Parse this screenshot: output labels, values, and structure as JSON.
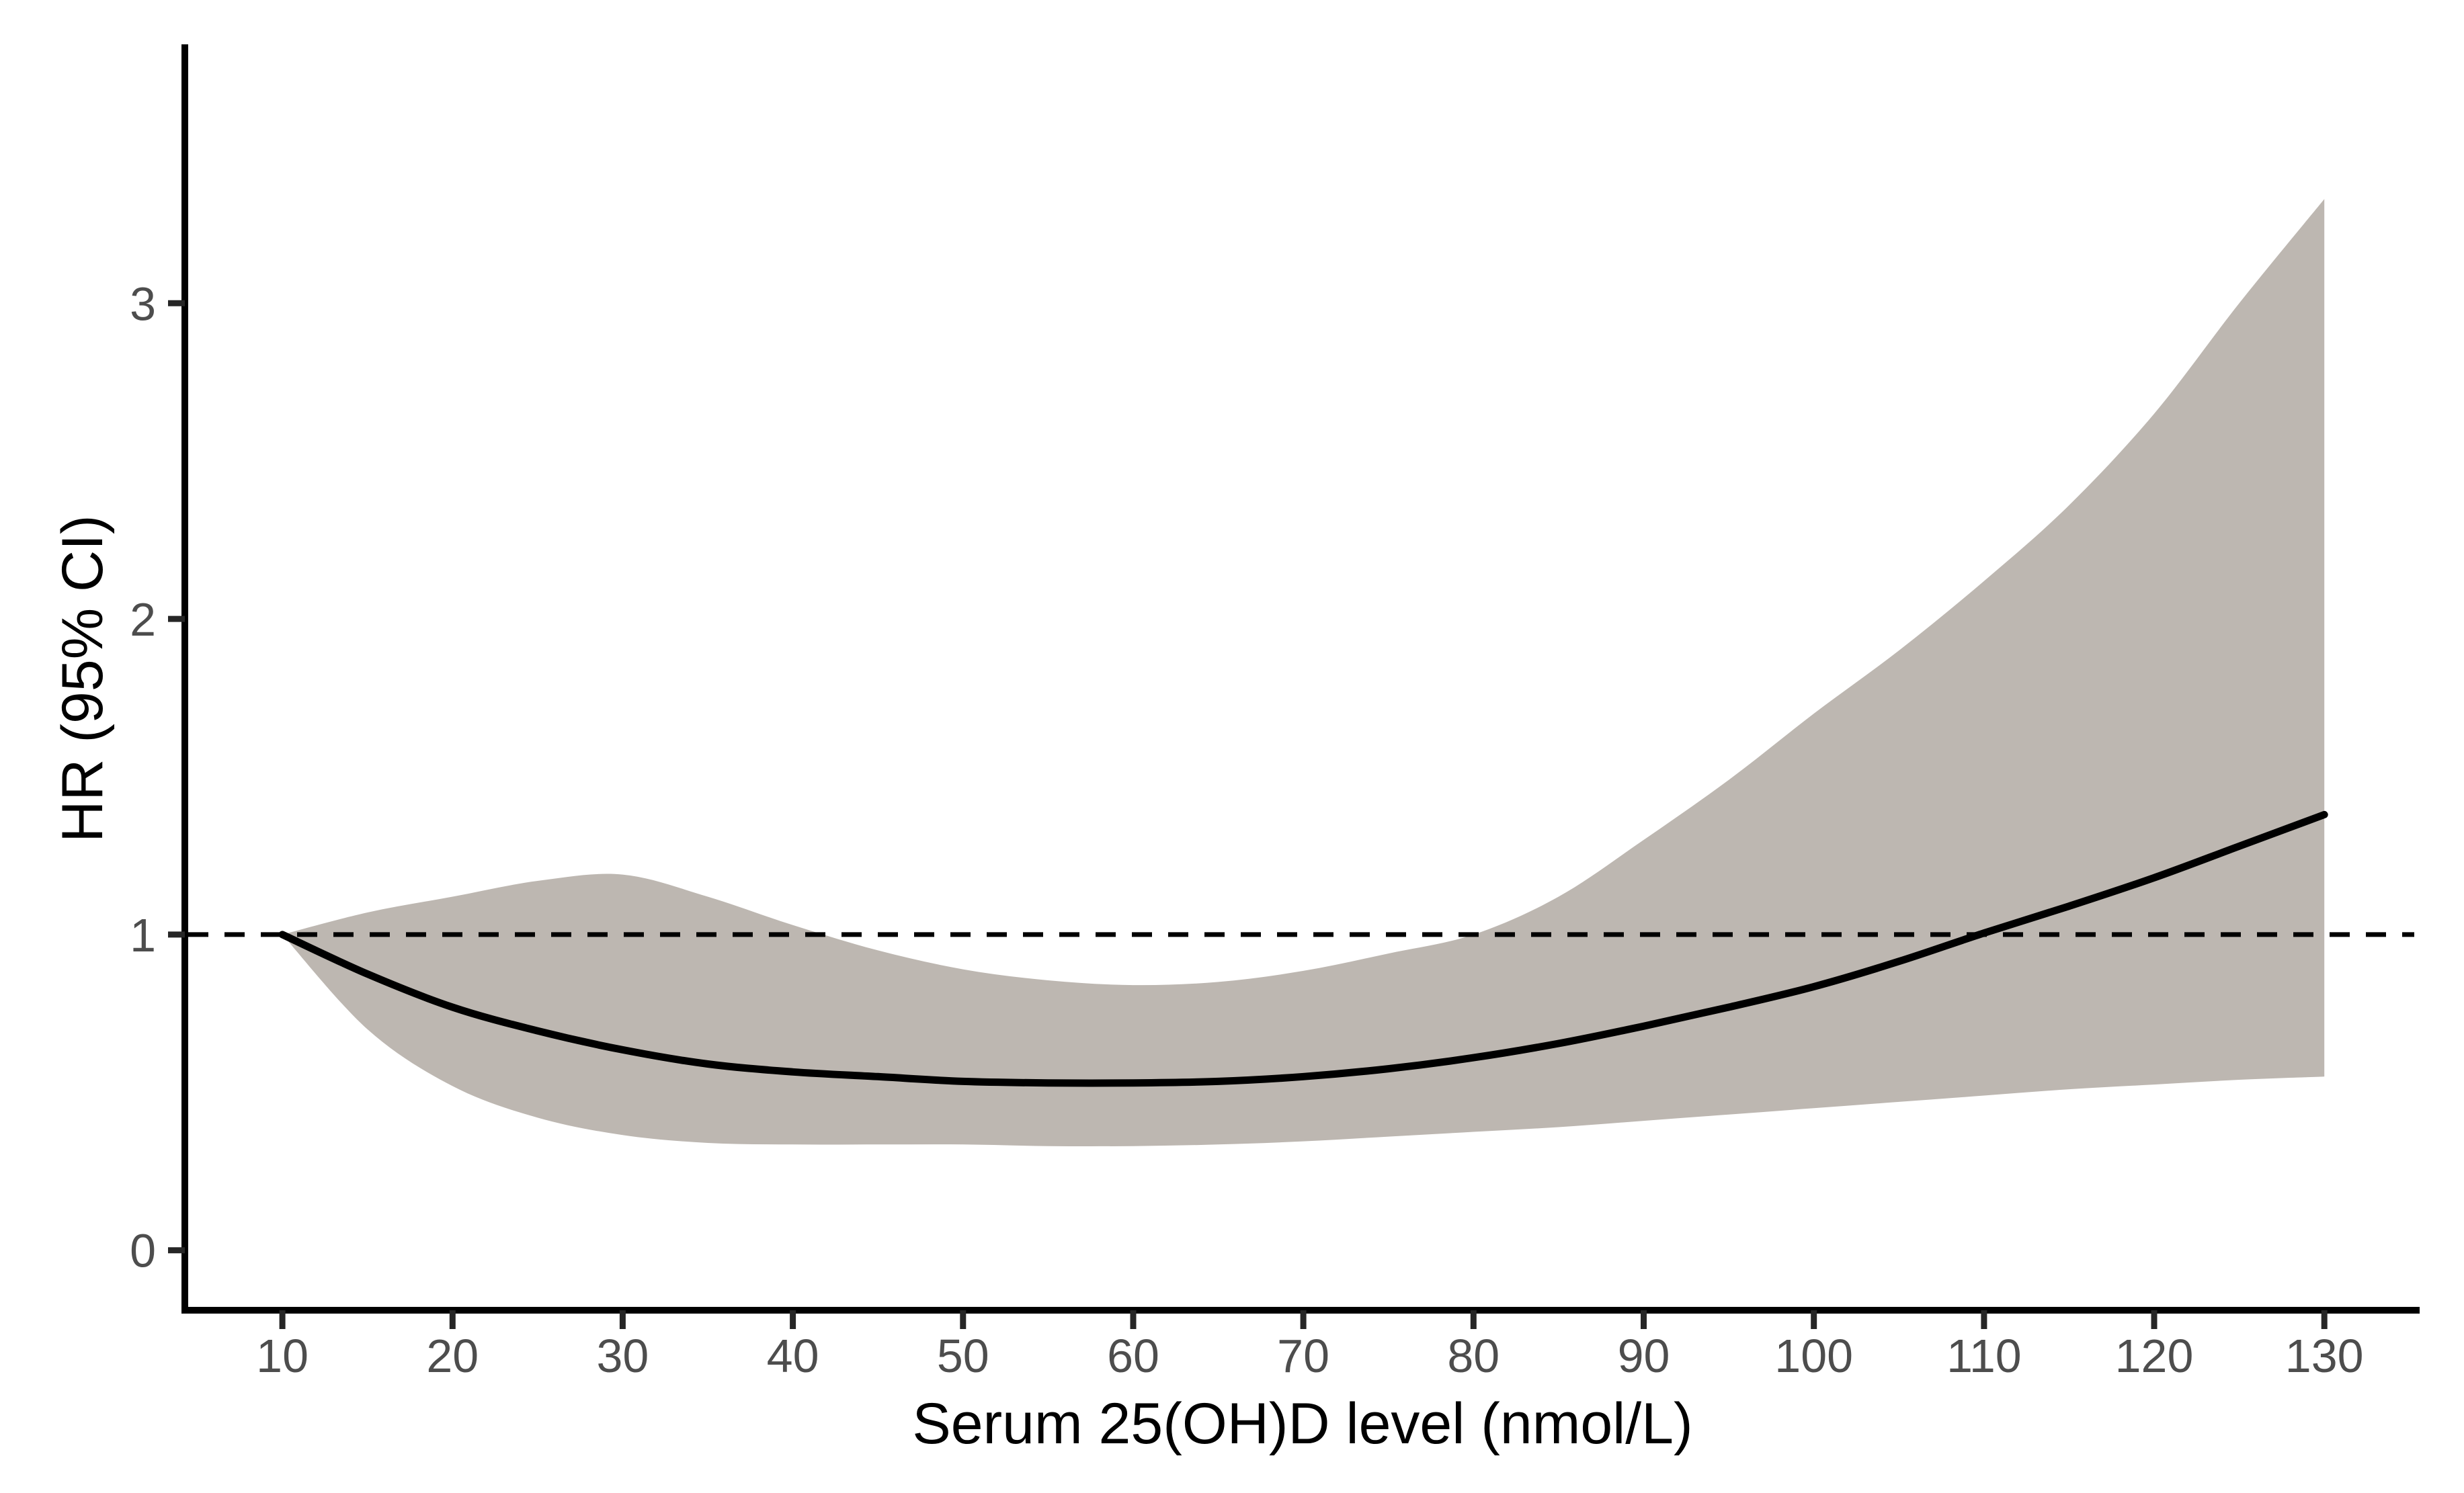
{
  "chart_data": {
    "type": "line",
    "title": "",
    "xlabel": "Serum 25(OH)D level (nmol/L)",
    "ylabel": "HR (95% CI)",
    "x_ticks": [
      10,
      20,
      30,
      40,
      50,
      60,
      70,
      80,
      90,
      100,
      110,
      120,
      130
    ],
    "y_ticks": [
      0,
      1,
      2,
      3
    ],
    "xlim": [
      4.27,
      135.6
    ],
    "ylim": [
      -0.19,
      3.82
    ],
    "grid": "off",
    "legend_position": "none",
    "reference_line_y": 1,
    "x": [
      10,
      15,
      20,
      25,
      30,
      35,
      40,
      45,
      50,
      55,
      60,
      65,
      70,
      75,
      80,
      85,
      90,
      95,
      100,
      105,
      110,
      115,
      120,
      125,
      130
    ],
    "series": [
      {
        "name": "HR",
        "style": "solid-line",
        "values": [
          1.0,
          0.875,
          0.77,
          0.695,
          0.635,
          0.59,
          0.565,
          0.55,
          0.535,
          0.53,
          0.53,
          0.535,
          0.55,
          0.575,
          0.61,
          0.655,
          0.71,
          0.77,
          0.835,
          0.915,
          1.005,
          1.09,
          1.18,
          1.28,
          1.38
        ]
      },
      {
        "name": "upper_95_ci",
        "style": "band-upper",
        "values": [
          1.0,
          1.07,
          1.12,
          1.17,
          1.19,
          1.12,
          1.03,
          0.95,
          0.89,
          0.855,
          0.84,
          0.85,
          0.885,
          0.94,
          1.0,
          1.12,
          1.3,
          1.49,
          1.7,
          1.9,
          2.12,
          2.36,
          2.65,
          3.0,
          3.33
        ]
      },
      {
        "name": "lower_95_ci",
        "style": "band-lower",
        "values": [
          1.0,
          0.7,
          0.52,
          0.42,
          0.365,
          0.34,
          0.335,
          0.335,
          0.335,
          0.33,
          0.33,
          0.335,
          0.345,
          0.36,
          0.375,
          0.39,
          0.41,
          0.43,
          0.45,
          0.47,
          0.49,
          0.51,
          0.525,
          0.54,
          0.55
        ]
      }
    ],
    "colors": {
      "band": "#bdb7b1",
      "line": "#000000",
      "reference_line": "#000000",
      "axis": "#000000",
      "tick_label": "#4d4d4d",
      "background": "#ffffff"
    }
  }
}
